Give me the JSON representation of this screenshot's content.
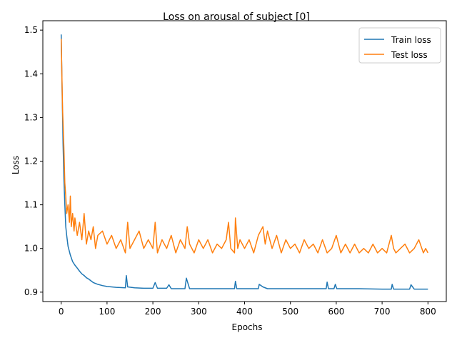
{
  "chart_data": {
    "type": "line",
    "title": "Loss on arousal of subject [0]",
    "xlabel": "Epochs",
    "ylabel": "Loss",
    "xlim": [
      -40,
      840
    ],
    "ylim": [
      0.8785,
      1.5215
    ],
    "xticks": [
      0,
      100,
      200,
      300,
      400,
      500,
      600,
      700,
      800
    ],
    "yticks": [
      0.9,
      1.0,
      1.1,
      1.2,
      1.3,
      1.4,
      1.5
    ],
    "ytick_labels": [
      "0.9",
      "1.0",
      "1.1",
      "1.2",
      "1.3",
      "1.4",
      "1.5"
    ],
    "grid": false,
    "legend_position": "upper right",
    "series": [
      {
        "name": "Train loss",
        "color": "#1f77b4",
        "x": [
          0,
          2,
          4,
          6,
          8,
          10,
          12,
          15,
          20,
          25,
          30,
          35,
          40,
          45,
          50,
          55,
          60,
          65,
          70,
          80,
          90,
          100,
          120,
          140,
          142,
          145,
          160,
          180,
          200,
          205,
          210,
          230,
          235,
          240,
          260,
          270,
          273,
          280,
          300,
          350,
          378,
          380,
          383,
          400,
          430,
          432,
          440,
          450,
          500,
          550,
          578,
          580,
          583,
          595,
          598,
          601,
          650,
          700,
          720,
          722,
          725,
          750,
          760,
          763,
          770,
          800
        ],
        "y": [
          1.49,
          1.36,
          1.24,
          1.16,
          1.1,
          1.05,
          1.03,
          1.005,
          0.985,
          0.97,
          0.962,
          0.955,
          0.948,
          0.942,
          0.938,
          0.933,
          0.93,
          0.926,
          0.922,
          0.918,
          0.915,
          0.913,
          0.911,
          0.91,
          0.938,
          0.912,
          0.91,
          0.909,
          0.909,
          0.922,
          0.909,
          0.909,
          0.917,
          0.908,
          0.908,
          0.908,
          0.932,
          0.908,
          0.908,
          0.908,
          0.908,
          0.925,
          0.908,
          0.908,
          0.908,
          0.918,
          0.912,
          0.908,
          0.908,
          0.908,
          0.908,
          0.923,
          0.908,
          0.908,
          0.918,
          0.908,
          0.908,
          0.907,
          0.907,
          0.918,
          0.907,
          0.907,
          0.907,
          0.917,
          0.907,
          0.907
        ]
      },
      {
        "name": "Test loss",
        "color": "#ff7f0e",
        "x": [
          0,
          3,
          6,
          8,
          10,
          12,
          15,
          18,
          20,
          22,
          25,
          28,
          30,
          35,
          40,
          45,
          50,
          55,
          60,
          65,
          70,
          75,
          80,
          90,
          100,
          110,
          120,
          130,
          140,
          145,
          150,
          160,
          170,
          180,
          190,
          200,
          205,
          210,
          220,
          230,
          240,
          250,
          260,
          270,
          275,
          280,
          290,
          300,
          310,
          320,
          330,
          340,
          350,
          360,
          365,
          370,
          378,
          380,
          385,
          390,
          400,
          410,
          420,
          430,
          440,
          445,
          450,
          460,
          470,
          480,
          490,
          500,
          510,
          520,
          530,
          540,
          550,
          560,
          570,
          580,
          590,
          600,
          610,
          620,
          630,
          640,
          650,
          660,
          670,
          680,
          690,
          700,
          710,
          720,
          725,
          730,
          740,
          750,
          760,
          770,
          780,
          790,
          795,
          800
        ],
        "y": [
          1.48,
          1.32,
          1.23,
          1.15,
          1.12,
          1.08,
          1.1,
          1.06,
          1.12,
          1.05,
          1.08,
          1.04,
          1.07,
          1.03,
          1.06,
          1.02,
          1.08,
          1.01,
          1.04,
          1.02,
          1.05,
          1.0,
          1.03,
          1.04,
          1.01,
          1.03,
          1.0,
          1.02,
          0.99,
          1.06,
          1.0,
          1.02,
          1.04,
          1.0,
          1.02,
          1.0,
          1.06,
          0.99,
          1.02,
          1.0,
          1.03,
          0.99,
          1.02,
          1.0,
          1.05,
          1.01,
          0.99,
          1.02,
          1.0,
          1.02,
          0.99,
          1.01,
          1.0,
          1.02,
          1.06,
          1.0,
          0.99,
          1.07,
          1.0,
          1.02,
          1.0,
          1.02,
          0.99,
          1.03,
          1.05,
          1.01,
          1.04,
          1.0,
          1.03,
          0.99,
          1.02,
          1.0,
          1.01,
          0.99,
          1.02,
          1.0,
          1.01,
          0.99,
          1.02,
          0.99,
          1.0,
          1.03,
          0.99,
          1.01,
          0.99,
          1.01,
          0.99,
          1.0,
          0.99,
          1.01,
          0.99,
          1.0,
          0.99,
          1.03,
          1.0,
          0.99,
          1.0,
          1.01,
          0.99,
          1.0,
          1.02,
          0.99,
          1.0,
          0.99
        ]
      }
    ]
  }
}
